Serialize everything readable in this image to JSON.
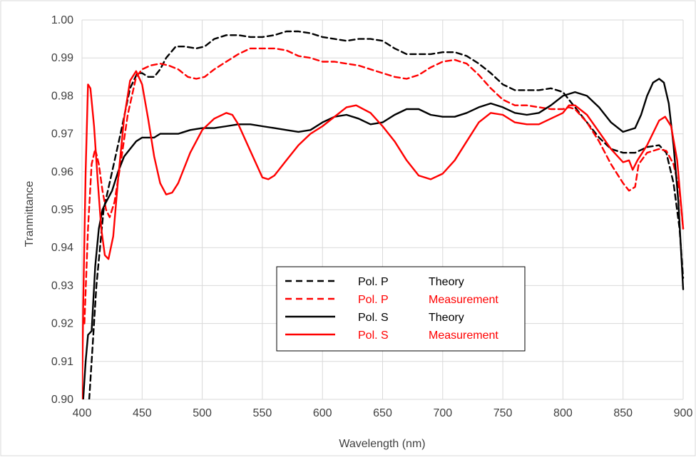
{
  "chart_data": {
    "type": "line",
    "title": "",
    "xlabel": "Wavelength (nm)",
    "ylabel": "Tranmittance",
    "xlim": [
      400,
      900
    ],
    "ylim": [
      0.9,
      1.0
    ],
    "x_ticks": [
      "400",
      "450",
      "500",
      "550",
      "600",
      "650",
      "700",
      "750",
      "800",
      "850",
      "900"
    ],
    "y_ticks": [
      "0.90",
      "0.91",
      "0.92",
      "0.93",
      "0.94",
      "0.95",
      "0.96",
      "0.97",
      "0.98",
      "0.99",
      "1.00"
    ],
    "grid": true,
    "legend": {
      "placement": "center-bottom",
      "entries": [
        {
          "pol": "Pol. P",
          "kind": "Theory"
        },
        {
          "pol": "Pol. P",
          "kind": "Measurement"
        },
        {
          "pol": "Pol. S",
          "kind": "Theory"
        },
        {
          "pol": "Pol. S",
          "kind": "Measurement"
        }
      ]
    },
    "series": [
      {
        "name": "Pol. P Theory",
        "color": "#000000",
        "dash": true,
        "points": [
          [
            406,
            0.9
          ],
          [
            408,
            0.91
          ],
          [
            412,
            0.93
          ],
          [
            418,
            0.95
          ],
          [
            425,
            0.96
          ],
          [
            432,
            0.97
          ],
          [
            440,
            0.982
          ],
          [
            446,
            0.986
          ],
          [
            450,
            0.986
          ],
          [
            455,
            0.985
          ],
          [
            460,
            0.985
          ],
          [
            465,
            0.987
          ],
          [
            470,
            0.99
          ],
          [
            478,
            0.993
          ],
          [
            485,
            0.993
          ],
          [
            495,
            0.9925
          ],
          [
            502,
            0.993
          ],
          [
            510,
            0.995
          ],
          [
            520,
            0.996
          ],
          [
            530,
            0.996
          ],
          [
            540,
            0.9955
          ],
          [
            550,
            0.9955
          ],
          [
            560,
            0.996
          ],
          [
            570,
            0.997
          ],
          [
            580,
            0.997
          ],
          [
            590,
            0.9965
          ],
          [
            600,
            0.9955
          ],
          [
            610,
            0.995
          ],
          [
            620,
            0.9945
          ],
          [
            630,
            0.995
          ],
          [
            640,
            0.995
          ],
          [
            650,
            0.9945
          ],
          [
            660,
            0.9925
          ],
          [
            670,
            0.991
          ],
          [
            680,
            0.991
          ],
          [
            690,
            0.991
          ],
          [
            700,
            0.9915
          ],
          [
            710,
            0.9915
          ],
          [
            720,
            0.9905
          ],
          [
            730,
            0.9885
          ],
          [
            740,
            0.986
          ],
          [
            750,
            0.983
          ],
          [
            760,
            0.9815
          ],
          [
            770,
            0.9815
          ],
          [
            780,
            0.9815
          ],
          [
            790,
            0.982
          ],
          [
            800,
            0.981
          ],
          [
            810,
            0.977
          ],
          [
            820,
            0.973
          ],
          [
            830,
            0.969
          ],
          [
            840,
            0.966
          ],
          [
            850,
            0.965
          ],
          [
            860,
            0.965
          ],
          [
            870,
            0.9665
          ],
          [
            880,
            0.967
          ],
          [
            886,
            0.965
          ],
          [
            892,
            0.957
          ],
          [
            897,
            0.945
          ],
          [
            900,
            0.932
          ]
        ]
      },
      {
        "name": "Pol. P Measurement",
        "color": "#ff0000",
        "dash": true,
        "points": [
          [
            402,
            0.92
          ],
          [
            405,
            0.945
          ],
          [
            408,
            0.962
          ],
          [
            411,
            0.966
          ],
          [
            414,
            0.962
          ],
          [
            417,
            0.955
          ],
          [
            420,
            0.95
          ],
          [
            423,
            0.948
          ],
          [
            427,
            0.952
          ],
          [
            432,
            0.962
          ],
          [
            438,
            0.975
          ],
          [
            445,
            0.985
          ],
          [
            450,
            0.987
          ],
          [
            457,
            0.988
          ],
          [
            465,
            0.9885
          ],
          [
            472,
            0.988
          ],
          [
            480,
            0.987
          ],
          [
            488,
            0.985
          ],
          [
            495,
            0.9845
          ],
          [
            502,
            0.985
          ],
          [
            510,
            0.987
          ],
          [
            520,
            0.989
          ],
          [
            530,
            0.991
          ],
          [
            540,
            0.9925
          ],
          [
            550,
            0.9925
          ],
          [
            560,
            0.9925
          ],
          [
            570,
            0.992
          ],
          [
            580,
            0.9905
          ],
          [
            590,
            0.99
          ],
          [
            600,
            0.989
          ],
          [
            610,
            0.989
          ],
          [
            620,
            0.9885
          ],
          [
            630,
            0.988
          ],
          [
            640,
            0.987
          ],
          [
            650,
            0.986
          ],
          [
            660,
            0.985
          ],
          [
            670,
            0.9845
          ],
          [
            680,
            0.9855
          ],
          [
            690,
            0.9875
          ],
          [
            700,
            0.989
          ],
          [
            710,
            0.9895
          ],
          [
            720,
            0.9885
          ],
          [
            730,
            0.9855
          ],
          [
            740,
            0.982
          ],
          [
            750,
            0.979
          ],
          [
            760,
            0.9775
          ],
          [
            770,
            0.9775
          ],
          [
            780,
            0.977
          ],
          [
            790,
            0.9765
          ],
          [
            800,
            0.9765
          ],
          [
            805,
            0.977
          ],
          [
            810,
            0.9765
          ],
          [
            820,
            0.973
          ],
          [
            830,
            0.968
          ],
          [
            840,
            0.962
          ],
          [
            850,
            0.957
          ],
          [
            855,
            0.955
          ],
          [
            860,
            0.956
          ],
          [
            863,
            0.962
          ],
          [
            870,
            0.965
          ],
          [
            880,
            0.966
          ],
          [
            886,
            0.9655
          ],
          [
            892,
            0.962
          ],
          [
            897,
            0.955
          ],
          [
            900,
            0.945
          ]
        ]
      },
      {
        "name": "Pol. S Theory",
        "color": "#000000",
        "dash": false,
        "points": [
          [
            401,
            0.9
          ],
          [
            403,
            0.91
          ],
          [
            405,
            0.917
          ],
          [
            408,
            0.918
          ],
          [
            411,
            0.935
          ],
          [
            414,
            0.945
          ],
          [
            417,
            0.95
          ],
          [
            420,
            0.952
          ],
          [
            425,
            0.955
          ],
          [
            430,
            0.96
          ],
          [
            435,
            0.964
          ],
          [
            440,
            0.966
          ],
          [
            445,
            0.968
          ],
          [
            450,
            0.969
          ],
          [
            455,
            0.969
          ],
          [
            460,
            0.969
          ],
          [
            465,
            0.97
          ],
          [
            470,
            0.97
          ],
          [
            480,
            0.97
          ],
          [
            490,
            0.971
          ],
          [
            500,
            0.9715
          ],
          [
            510,
            0.9715
          ],
          [
            520,
            0.972
          ],
          [
            530,
            0.9725
          ],
          [
            540,
            0.9725
          ],
          [
            550,
            0.972
          ],
          [
            560,
            0.9715
          ],
          [
            570,
            0.971
          ],
          [
            580,
            0.9705
          ],
          [
            590,
            0.971
          ],
          [
            600,
            0.973
          ],
          [
            610,
            0.9745
          ],
          [
            620,
            0.975
          ],
          [
            630,
            0.974
          ],
          [
            640,
            0.9725
          ],
          [
            650,
            0.973
          ],
          [
            660,
            0.975
          ],
          [
            670,
            0.9765
          ],
          [
            680,
            0.9765
          ],
          [
            690,
            0.975
          ],
          [
            700,
            0.9745
          ],
          [
            710,
            0.9745
          ],
          [
            720,
            0.9755
          ],
          [
            730,
            0.977
          ],
          [
            740,
            0.978
          ],
          [
            750,
            0.977
          ],
          [
            760,
            0.9755
          ],
          [
            770,
            0.975
          ],
          [
            780,
            0.9755
          ],
          [
            790,
            0.9775
          ],
          [
            800,
            0.98
          ],
          [
            810,
            0.981
          ],
          [
            820,
            0.98
          ],
          [
            830,
            0.977
          ],
          [
            840,
            0.973
          ],
          [
            850,
            0.9705
          ],
          [
            860,
            0.9715
          ],
          [
            865,
            0.975
          ],
          [
            870,
            0.98
          ],
          [
            875,
            0.9835
          ],
          [
            880,
            0.9845
          ],
          [
            884,
            0.9835
          ],
          [
            888,
            0.978
          ],
          [
            892,
            0.967
          ],
          [
            896,
            0.952
          ],
          [
            900,
            0.929
          ]
        ]
      },
      {
        "name": "Pol. S Measurement",
        "color": "#ff0000",
        "dash": false,
        "points": [
          [
            400,
            0.9
          ],
          [
            401,
            0.925
          ],
          [
            403,
            0.96
          ],
          [
            405,
            0.983
          ],
          [
            407,
            0.982
          ],
          [
            410,
            0.972
          ],
          [
            413,
            0.958
          ],
          [
            416,
            0.945
          ],
          [
            419,
            0.938
          ],
          [
            422,
            0.937
          ],
          [
            426,
            0.943
          ],
          [
            430,
            0.958
          ],
          [
            435,
            0.974
          ],
          [
            440,
            0.984
          ],
          [
            445,
            0.9865
          ],
          [
            450,
            0.983
          ],
          [
            455,
            0.974
          ],
          [
            460,
            0.964
          ],
          [
            465,
            0.957
          ],
          [
            470,
            0.954
          ],
          [
            475,
            0.9545
          ],
          [
            480,
            0.957
          ],
          [
            490,
            0.965
          ],
          [
            500,
            0.971
          ],
          [
            510,
            0.974
          ],
          [
            520,
            0.9755
          ],
          [
            525,
            0.975
          ],
          [
            530,
            0.9725
          ],
          [
            540,
            0.9655
          ],
          [
            550,
            0.9585
          ],
          [
            555,
            0.958
          ],
          [
            560,
            0.959
          ],
          [
            570,
            0.963
          ],
          [
            580,
            0.967
          ],
          [
            590,
            0.97
          ],
          [
            600,
            0.972
          ],
          [
            610,
            0.9745
          ],
          [
            620,
            0.977
          ],
          [
            628,
            0.9775
          ],
          [
            640,
            0.9755
          ],
          [
            650,
            0.972
          ],
          [
            660,
            0.968
          ],
          [
            670,
            0.963
          ],
          [
            680,
            0.959
          ],
          [
            690,
            0.958
          ],
          [
            700,
            0.9595
          ],
          [
            710,
            0.963
          ],
          [
            720,
            0.968
          ],
          [
            730,
            0.973
          ],
          [
            740,
            0.9755
          ],
          [
            750,
            0.975
          ],
          [
            760,
            0.973
          ],
          [
            770,
            0.9725
          ],
          [
            780,
            0.9725
          ],
          [
            790,
            0.974
          ],
          [
            800,
            0.9755
          ],
          [
            805,
            0.9775
          ],
          [
            810,
            0.9775
          ],
          [
            820,
            0.975
          ],
          [
            830,
            0.9705
          ],
          [
            840,
            0.966
          ],
          [
            850,
            0.9625
          ],
          [
            855,
            0.963
          ],
          [
            858,
            0.9605
          ],
          [
            862,
            0.963
          ],
          [
            870,
            0.967
          ],
          [
            880,
            0.9735
          ],
          [
            885,
            0.9745
          ],
          [
            890,
            0.972
          ],
          [
            895,
            0.963
          ],
          [
            900,
            0.945
          ]
        ]
      }
    ]
  }
}
